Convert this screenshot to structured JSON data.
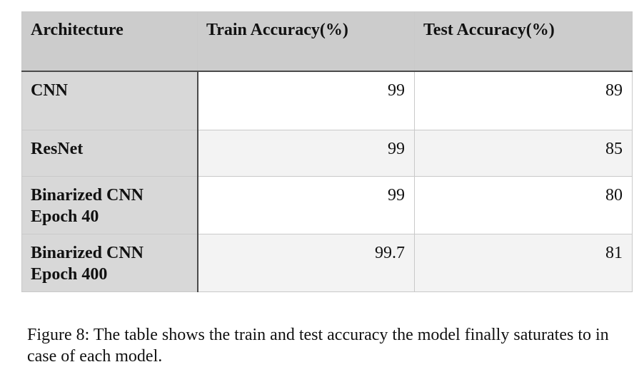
{
  "table": {
    "headers": [
      "Architecture",
      "Train Accuracy(%)",
      "Test Accuracy(%)"
    ],
    "rows": [
      {
        "architecture": "CNN",
        "train_accuracy": "99",
        "test_accuracy": "89"
      },
      {
        "architecture": "ResNet",
        "train_accuracy": "99",
        "test_accuracy": "85"
      },
      {
        "architecture": "Binarized CNN\nEpoch 40",
        "train_accuracy": "99",
        "test_accuracy": "80"
      },
      {
        "architecture": "Binarized CNN\nEpoch 400",
        "train_accuracy": "99.7",
        "test_accuracy": "81"
      }
    ]
  },
  "caption": "Figure 8: The table shows the train and test accuracy the model finally saturates to in case of each model.",
  "colors": {
    "header_background": "#cccccc",
    "first_column_background": "#d8d8d8",
    "striped_row_background": "#f3f3f3",
    "border": "#c9c9c9",
    "divider": "#4a4a4a"
  }
}
